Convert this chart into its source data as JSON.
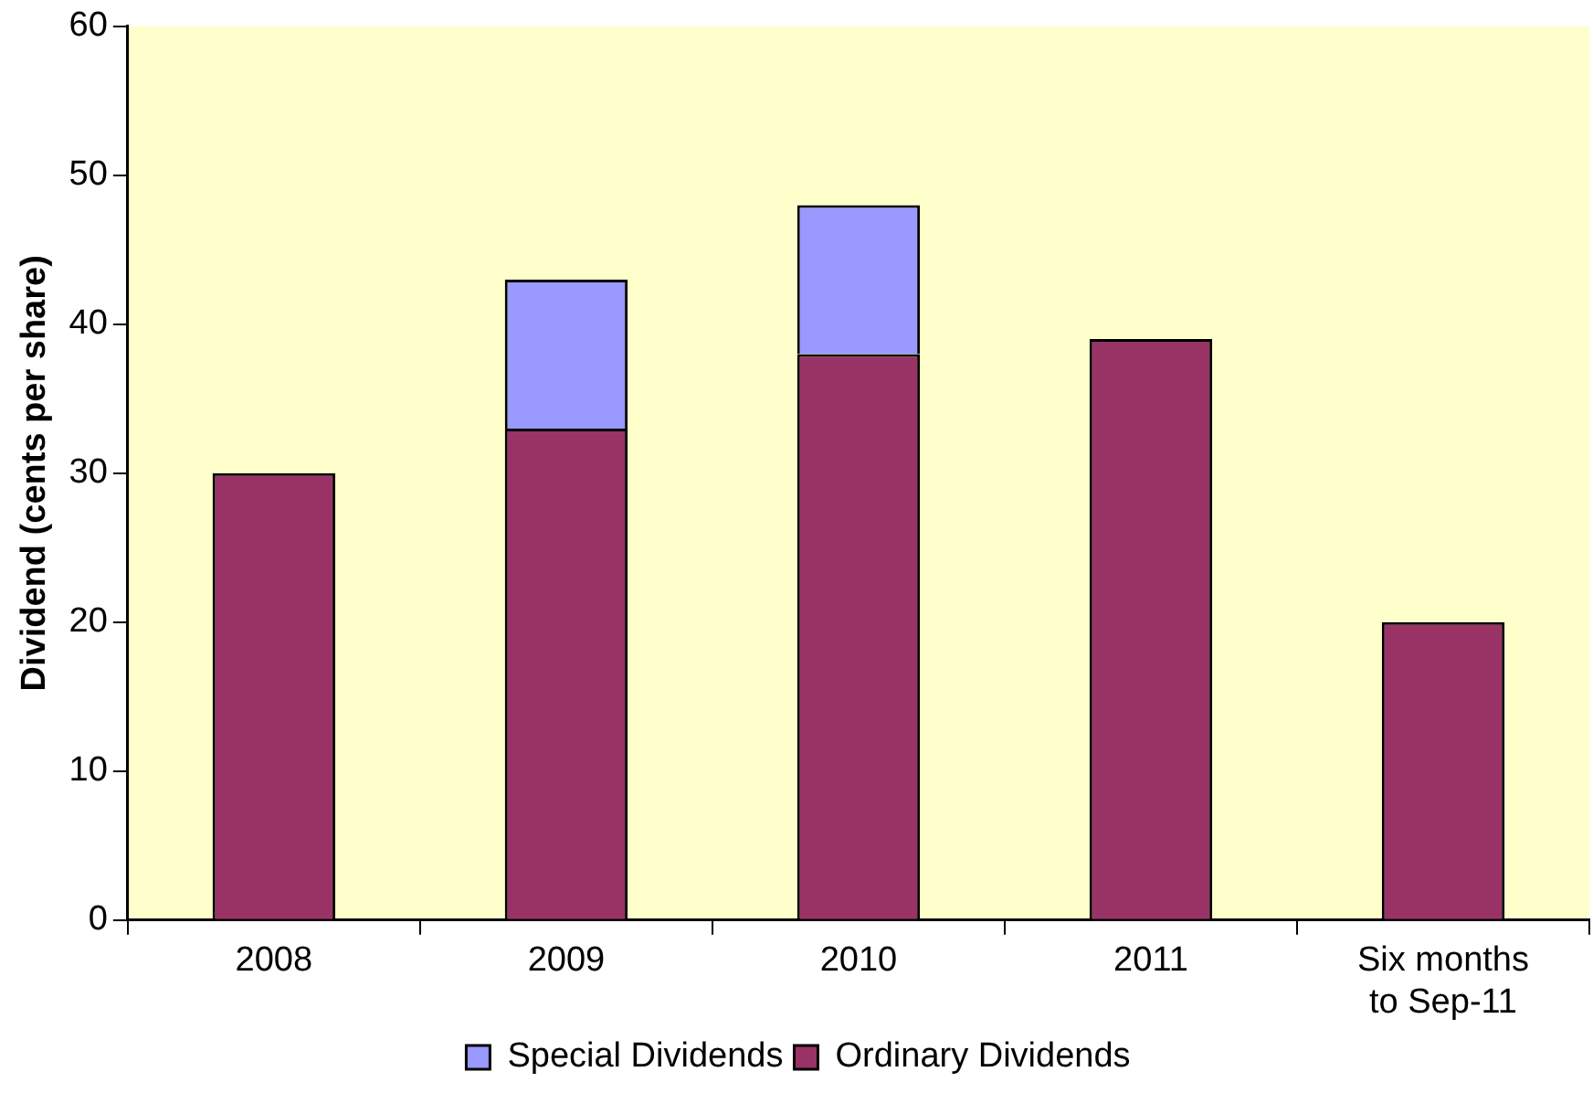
{
  "chart_data": {
    "type": "bar",
    "stacked": true,
    "ylabel": "Dividend (cents per share)",
    "categories": [
      "2008",
      "2009",
      "2010",
      "2011",
      "Six months to Sep-11"
    ],
    "series": [
      {
        "name": "Ordinary Dividends",
        "color": "#993366",
        "values": [
          30,
          33,
          38,
          39,
          20
        ]
      },
      {
        "name": "Special Dividends",
        "color": "#9999ff",
        "values": [
          null,
          10,
          10,
          null,
          null
        ]
      }
    ],
    "ylim": [
      0,
      60
    ],
    "yticks": [
      0,
      10,
      20,
      30,
      40,
      50,
      60
    ],
    "grid": false,
    "legend": "bottom"
  }
}
